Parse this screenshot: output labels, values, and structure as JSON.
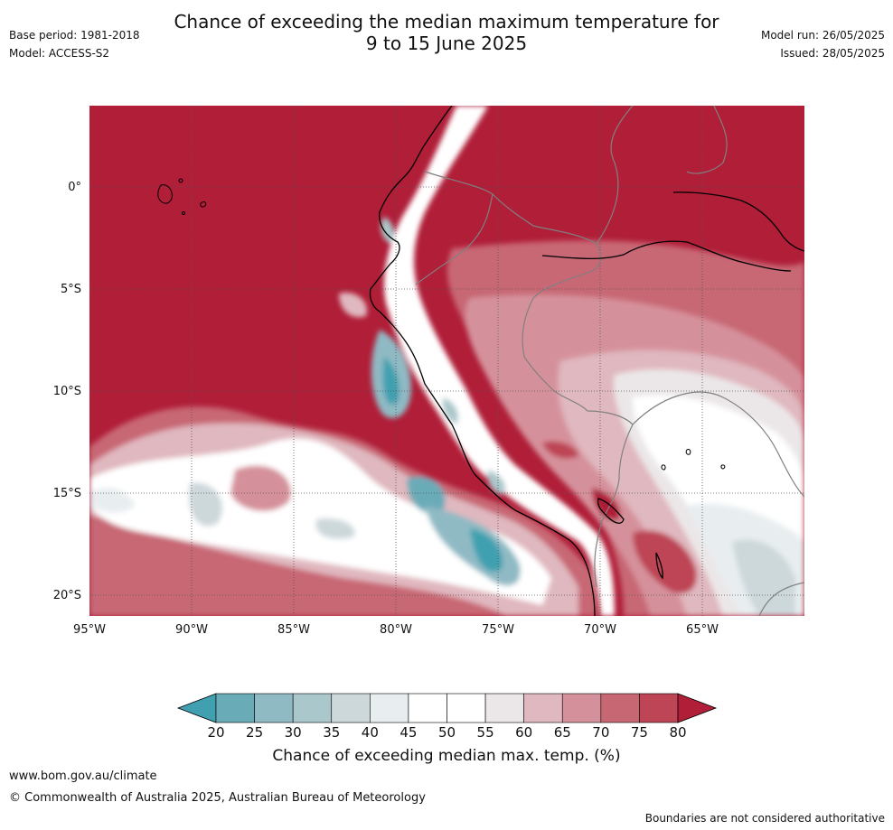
{
  "header": {
    "title_line1": "Chance of exceeding the median maximum temperature for",
    "title_line2": "9 to 15 June 2025",
    "base_period": "Base period: 1981-2018",
    "model": "Model: ACCESS-S2",
    "model_run": "Model run: 26/05/2025",
    "issued": "Issued: 28/05/2025"
  },
  "map": {
    "region": "South America west coast and adjacent Pacific",
    "lat_labels": [
      "0°",
      "5°S",
      "10°S",
      "15°S",
      "20°S"
    ],
    "lon_labels": [
      "95°W",
      "90°W",
      "85°W",
      "80°W",
      "75°W",
      "70°W",
      "65°W"
    ],
    "background_color": "#b01e38",
    "coast_color": "#000000",
    "border_color": "#808080"
  },
  "colorbar": {
    "ticks": [
      "20",
      "25",
      "30",
      "35",
      "40",
      "45",
      "50",
      "55",
      "60",
      "65",
      "70",
      "75",
      "80"
    ],
    "colors": [
      "#40a0b0",
      "#6aabb8",
      "#8fbac4",
      "#aac7cb",
      "#cdd8db",
      "#e8eef0",
      "#ffffff",
      "#ffffff",
      "#ebe7e8",
      "#e0b8bf",
      "#d5919b",
      "#c86774",
      "#bd4555",
      "#b01e38"
    ],
    "label": "Chance of exceeding median max. temp. (%)"
  },
  "footer": {
    "link": "www.bom.gov.au/climate",
    "copyright": "© Commonwealth of Australia 2025, Australian Bureau of Meteorology",
    "disclaimer": "Boundaries are not considered authoritative"
  }
}
